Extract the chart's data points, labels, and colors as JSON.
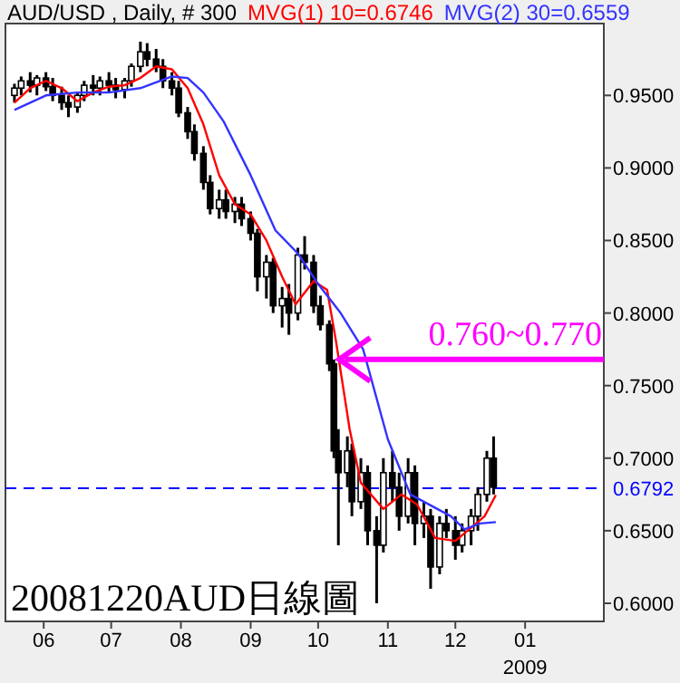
{
  "chart_data": {
    "type": "candlestick",
    "title": "AUD/USD , Daily, # 300",
    "legend": "top",
    "x": [
      "2008-05-19",
      "2008-05-22",
      "2008-05-26",
      "2008-05-29",
      "2008-06-02",
      "2008-06-05",
      "2008-06-09",
      "2008-06-12",
      "2008-06-16",
      "2008-06-19",
      "2008-06-23",
      "2008-06-26",
      "2008-06-30",
      "2008-07-03",
      "2008-07-07",
      "2008-07-10",
      "2008-07-14",
      "2008-07-17",
      "2008-07-21",
      "2008-07-24",
      "2008-07-28",
      "2008-07-31",
      "2008-08-04",
      "2008-08-07",
      "2008-08-11",
      "2008-08-14",
      "2008-08-18",
      "2008-08-21",
      "2008-08-25",
      "2008-08-28",
      "2008-09-01",
      "2008-09-04",
      "2008-09-08",
      "2008-09-11",
      "2008-09-15",
      "2008-09-18",
      "2008-09-22",
      "2008-09-25",
      "2008-09-29",
      "2008-10-02",
      "2008-10-06",
      "2008-10-08",
      "2008-10-10",
      "2008-10-14",
      "2008-10-16",
      "2008-10-20",
      "2008-10-23",
      "2008-10-27",
      "2008-10-30",
      "2008-11-03",
      "2008-11-06",
      "2008-11-10",
      "2008-11-13",
      "2008-11-17",
      "2008-11-20",
      "2008-11-24",
      "2008-11-27",
      "2008-12-01",
      "2008-12-04",
      "2008-12-08",
      "2008-12-11",
      "2008-12-15",
      "2008-12-18"
    ],
    "ohlc": [
      [
        0.95,
        0.958,
        0.945,
        0.955
      ],
      [
        0.955,
        0.963,
        0.95,
        0.96
      ],
      [
        0.96,
        0.966,
        0.952,
        0.957
      ],
      [
        0.957,
        0.964,
        0.95,
        0.962
      ],
      [
        0.962,
        0.966,
        0.953,
        0.956
      ],
      [
        0.956,
        0.962,
        0.946,
        0.95
      ],
      [
        0.95,
        0.956,
        0.94,
        0.945
      ],
      [
        0.945,
        0.95,
        0.935,
        0.942
      ],
      [
        0.942,
        0.952,
        0.938,
        0.95
      ],
      [
        0.95,
        0.96,
        0.946,
        0.957
      ],
      [
        0.957,
        0.964,
        0.95,
        0.955
      ],
      [
        0.955,
        0.963,
        0.95,
        0.96
      ],
      [
        0.96,
        0.966,
        0.952,
        0.957
      ],
      [
        0.957,
        0.962,
        0.948,
        0.954
      ],
      [
        0.954,
        0.962,
        0.948,
        0.96
      ],
      [
        0.96,
        0.972,
        0.956,
        0.97
      ],
      [
        0.97,
        0.987,
        0.966,
        0.98
      ],
      [
        0.98,
        0.986,
        0.97,
        0.975
      ],
      [
        0.975,
        0.982,
        0.966,
        0.97
      ],
      [
        0.97,
        0.975,
        0.955,
        0.96
      ],
      [
        0.96,
        0.966,
        0.95,
        0.955
      ],
      [
        0.955,
        0.96,
        0.935,
        0.938
      ],
      [
        0.938,
        0.942,
        0.92,
        0.925
      ],
      [
        0.925,
        0.93,
        0.905,
        0.91
      ],
      [
        0.91,
        0.915,
        0.885,
        0.89
      ],
      [
        0.89,
        0.895,
        0.868,
        0.872
      ],
      [
        0.872,
        0.885,
        0.865,
        0.878
      ],
      [
        0.878,
        0.885,
        0.865,
        0.87
      ],
      [
        0.87,
        0.88,
        0.862,
        0.875
      ],
      [
        0.875,
        0.88,
        0.86,
        0.865
      ],
      [
        0.865,
        0.87,
        0.85,
        0.855
      ],
      [
        0.855,
        0.858,
        0.815,
        0.825
      ],
      [
        0.825,
        0.84,
        0.81,
        0.835
      ],
      [
        0.835,
        0.838,
        0.8,
        0.805
      ],
      [
        0.805,
        0.818,
        0.79,
        0.81
      ],
      [
        0.81,
        0.82,
        0.785,
        0.8
      ],
      [
        0.8,
        0.845,
        0.795,
        0.84
      ],
      [
        0.84,
        0.853,
        0.83,
        0.835
      ],
      [
        0.835,
        0.84,
        0.8,
        0.805
      ],
      [
        0.805,
        0.812,
        0.788,
        0.792
      ],
      [
        0.792,
        0.795,
        0.76,
        0.765
      ],
      [
        0.765,
        0.768,
        0.7,
        0.705
      ],
      [
        0.705,
        0.72,
        0.64,
        0.69
      ],
      [
        0.69,
        0.715,
        0.68,
        0.705
      ],
      [
        0.705,
        0.71,
        0.66,
        0.67
      ],
      [
        0.67,
        0.7,
        0.665,
        0.69
      ],
      [
        0.69,
        0.695,
        0.64,
        0.65
      ],
      [
        0.65,
        0.66,
        0.6,
        0.64
      ],
      [
        0.64,
        0.7,
        0.635,
        0.69
      ],
      [
        0.69,
        0.705,
        0.67,
        0.68
      ],
      [
        0.68,
        0.69,
        0.65,
        0.66
      ],
      [
        0.66,
        0.7,
        0.655,
        0.69
      ],
      [
        0.69,
        0.695,
        0.64,
        0.655
      ],
      [
        0.655,
        0.67,
        0.645,
        0.66
      ],
      [
        0.66,
        0.665,
        0.61,
        0.625
      ],
      [
        0.625,
        0.66,
        0.62,
        0.655
      ],
      [
        0.655,
        0.665,
        0.645,
        0.65
      ],
      [
        0.65,
        0.66,
        0.63,
        0.64
      ],
      [
        0.64,
        0.655,
        0.635,
        0.65
      ],
      [
        0.65,
        0.665,
        0.64,
        0.66
      ],
      [
        0.66,
        0.68,
        0.65,
        0.675
      ],
      [
        0.675,
        0.705,
        0.67,
        0.7
      ],
      [
        0.7,
        0.715,
        0.675,
        0.68
      ]
    ],
    "series": [
      {
        "name": "MVG(1) 10=0.6746",
        "type": "line",
        "color": "#ff0000",
        "x": [
          "2008-05-19",
          "2008-05-26",
          "2008-06-02",
          "2008-06-09",
          "2008-06-16",
          "2008-06-23",
          "2008-06-30",
          "2008-07-07",
          "2008-07-14",
          "2008-07-21",
          "2008-07-28",
          "2008-08-04",
          "2008-08-11",
          "2008-08-18",
          "2008-08-25",
          "2008-09-01",
          "2008-09-08",
          "2008-09-15",
          "2008-09-21",
          "2008-09-29",
          "2008-10-05",
          "2008-10-09",
          "2008-10-15",
          "2008-10-20",
          "2008-10-30",
          "2008-11-07",
          "2008-11-14",
          "2008-11-22",
          "2008-12-01",
          "2008-12-08",
          "2008-12-14",
          "2008-12-19"
        ],
        "values": [
          0.945,
          0.955,
          0.96,
          0.955,
          0.946,
          0.952,
          0.956,
          0.957,
          0.962,
          0.97,
          0.968,
          0.955,
          0.93,
          0.895,
          0.875,
          0.868,
          0.85,
          0.825,
          0.806,
          0.822,
          0.816,
          0.78,
          0.72,
          0.683,
          0.665,
          0.675,
          0.668,
          0.645,
          0.643,
          0.652,
          0.66,
          0.6746
        ]
      },
      {
        "name": "MVG(2) 30=0.6559",
        "type": "line",
        "color": "#3333ff",
        "x": [
          "2008-05-19",
          "2008-06-02",
          "2008-06-16",
          "2008-06-30",
          "2008-07-14",
          "2008-07-28",
          "2008-08-04",
          "2008-08-11",
          "2008-08-20",
          "2008-09-01",
          "2008-09-12",
          "2008-09-22",
          "2008-10-01",
          "2008-10-11",
          "2008-10-21",
          "2008-11-01",
          "2008-11-11",
          "2008-11-29",
          "2008-12-05",
          "2008-12-12",
          "2008-12-19"
        ],
        "values": [
          0.94,
          0.95,
          0.952,
          0.952,
          0.955,
          0.963,
          0.962,
          0.952,
          0.932,
          0.895,
          0.857,
          0.841,
          0.82,
          0.8,
          0.775,
          0.713,
          0.675,
          0.66,
          0.651,
          0.655,
          0.6559
        ]
      }
    ],
    "xlim": [
      "2008-05-15",
      "2009-02-05"
    ],
    "xticks": [
      {
        "value": "2008-06-01",
        "label": "06"
      },
      {
        "value": "2008-07-01",
        "label": "07"
      },
      {
        "value": "2008-08-01",
        "label": "08"
      },
      {
        "value": "2008-09-01",
        "label": "09"
      },
      {
        "value": "2008-10-01",
        "label": "10"
      },
      {
        "value": "2008-11-01",
        "label": "11"
      },
      {
        "value": "2008-12-01",
        "label": "12"
      },
      {
        "value": "2009-01-01",
        "label": "01\n2009"
      }
    ],
    "ylim": [
      0.5875,
      0.9995
    ],
    "yticks": [
      {
        "value": 0.6,
        "label": "0.6000"
      },
      {
        "value": 0.65,
        "label": "0.6500"
      },
      {
        "value": 0.7,
        "label": "0.7000"
      },
      {
        "value": 0.75,
        "label": "0.7500"
      },
      {
        "value": 0.8,
        "label": "0.8000"
      },
      {
        "value": 0.85,
        "label": "0.8500"
      },
      {
        "value": 0.9,
        "label": "0.9000"
      },
      {
        "value": 0.95,
        "label": "0.9500"
      }
    ],
    "ref_lines": [
      {
        "axis": "y",
        "value": 0.6792,
        "label": "0.6792",
        "color": "#0000ff",
        "line_style": "dashed"
      }
    ],
    "annotations": [
      {
        "text": "0.760~0.770",
        "x": "2008-10-08",
        "y": 0.768
      },
      "20081220AUD日線圖"
    ],
    "grid": false
  }
}
